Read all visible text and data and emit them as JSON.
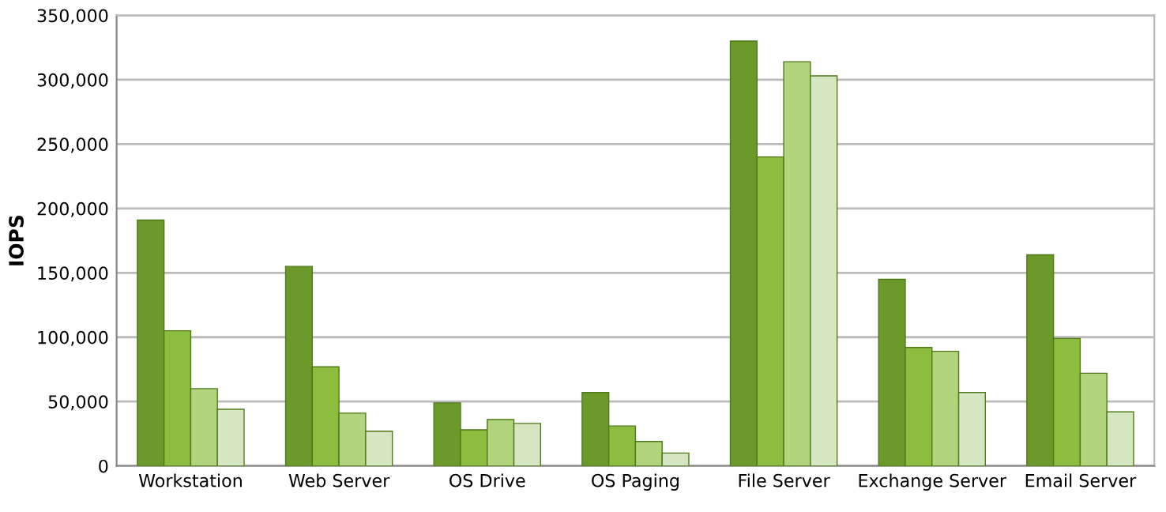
{
  "chart_data": {
    "type": "bar",
    "ylabel": "IOPS",
    "categories": [
      "Workstation",
      "Web Server",
      "OS Drive",
      "OS Paging",
      "File Server",
      "Exchange Server",
      "Email Server"
    ],
    "series": [
      {
        "color": "#6b9a2b",
        "values": [
          191000,
          155000,
          49000,
          57000,
          330000,
          145000,
          164000
        ]
      },
      {
        "color": "#8dbd3e",
        "values": [
          105000,
          77000,
          28000,
          31000,
          240000,
          92000,
          99000
        ]
      },
      {
        "color": "#b2d47c",
        "values": [
          60000,
          41000,
          36000,
          19000,
          314000,
          89000,
          72000
        ]
      },
      {
        "color": "#d6e5c2",
        "values": [
          44000,
          27000,
          33000,
          10000,
          303000,
          57000,
          42000
        ]
      }
    ],
    "ylim": [
      0,
      350000
    ],
    "yticks": [
      {
        "value": 0,
        "label": "0"
      },
      {
        "value": 50000,
        "label": "50,000"
      },
      {
        "value": 100000,
        "label": "100,000"
      },
      {
        "value": 150000,
        "label": "150,000"
      },
      {
        "value": 200000,
        "label": "200,000"
      },
      {
        "value": 250000,
        "label": "250,000"
      },
      {
        "value": 300000,
        "label": "300,000"
      },
      {
        "value": 350000,
        "label": "350,000"
      }
    ],
    "grid": "y",
    "legend": false
  }
}
